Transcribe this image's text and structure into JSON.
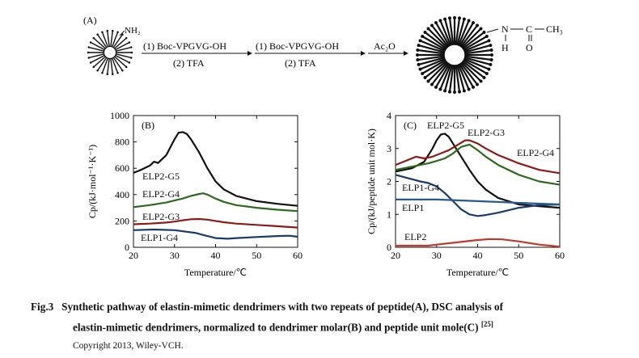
{
  "scheme": {
    "label": "(A)",
    "nh2": "NH₂",
    "step1_line1": "(1) Boc-VPGVG-OH",
    "step1_line2": "(2) TFA",
    "step2_line1": "(1) Boc-VPGVG-OH",
    "step2_line2": "(2) TFA",
    "step3": "Ac₂O",
    "product_n": "N",
    "product_c": "C",
    "product_ch3": "CH₃",
    "product_h": "H",
    "product_o": "O"
  },
  "chart_data": [
    {
      "type": "line",
      "panel_label": "(B)",
      "xlabel": "Temperature/℃",
      "ylabel": "Cp/(kJ·mol⁻¹·K⁻¹)",
      "xlim": [
        20,
        60
      ],
      "ylim": [
        0,
        1000
      ],
      "xticks": [
        "20",
        "30",
        "40",
        "50",
        "60"
      ],
      "yticks": [
        "0",
        "200",
        "400",
        "600",
        "800",
        "1000"
      ],
      "series": [
        {
          "name": "ELP2-G5",
          "color": "#111111",
          "x": [
            20,
            22,
            24,
            25,
            26,
            28,
            30,
            31,
            32,
            33,
            34,
            36,
            38,
            40,
            42,
            45,
            50,
            55,
            60
          ],
          "y": [
            565,
            590,
            620,
            650,
            640,
            700,
            820,
            870,
            875,
            860,
            820,
            720,
            600,
            500,
            440,
            390,
            350,
            330,
            315
          ]
        },
        {
          "name": "ELP2-G4",
          "color": "#2d6a1e",
          "x": [
            20,
            24,
            28,
            30,
            32,
            34,
            36,
            37,
            38,
            40,
            42,
            45,
            50,
            55,
            60
          ],
          "y": [
            305,
            320,
            340,
            355,
            370,
            390,
            405,
            410,
            400,
            370,
            345,
            320,
            300,
            285,
            275
          ]
        },
        {
          "name": "ELP2-G3",
          "color": "#8b1a1a",
          "x": [
            20,
            24,
            28,
            30,
            32,
            34,
            36,
            38,
            40,
            42,
            45,
            50,
            55,
            60
          ],
          "y": [
            175,
            180,
            188,
            195,
            205,
            213,
            215,
            210,
            200,
            190,
            180,
            170,
            160,
            150
          ]
        },
        {
          "name": "ELP1-G4",
          "color": "#1a3a6b",
          "x": [
            20,
            25,
            30,
            35,
            38,
            40,
            43,
            45,
            50,
            55,
            58,
            60
          ],
          "y": [
            130,
            135,
            130,
            110,
            85,
            70,
            65,
            70,
            78,
            85,
            88,
            80
          ]
        }
      ]
    },
    {
      "type": "line",
      "panel_label": "(C)",
      "xlabel": "Temperature/℃",
      "ylabel": "Cp/(kJ/peptide unit mol·K)",
      "xlim": [
        20,
        60
      ],
      "ylim": [
        0,
        4
      ],
      "xticks": [
        "20",
        "30",
        "40",
        "50",
        "60"
      ],
      "yticks": [
        "0",
        "1",
        "2",
        "3",
        "4"
      ],
      "series": [
        {
          "name": "ELP2-G5",
          "color": "#111111",
          "x": [
            20,
            24,
            27,
            29,
            30,
            31,
            32,
            33,
            34,
            36,
            38,
            40,
            42,
            45,
            50,
            55,
            60
          ],
          "y": [
            2.3,
            2.4,
            2.6,
            3.0,
            3.25,
            3.42,
            3.45,
            3.35,
            3.15,
            2.75,
            2.35,
            2.0,
            1.75,
            1.5,
            1.3,
            1.25,
            1.2
          ]
        },
        {
          "name": "ELP2-G3",
          "color": "#8b1a1a",
          "x": [
            20,
            23,
            25,
            27,
            29,
            31,
            33,
            35,
            37,
            38,
            40,
            42,
            45,
            50,
            55,
            60
          ],
          "y": [
            2.5,
            2.65,
            2.75,
            2.7,
            2.75,
            2.85,
            2.95,
            3.1,
            3.25,
            3.25,
            3.15,
            3.0,
            2.8,
            2.55,
            2.35,
            2.25
          ]
        },
        {
          "name": "ELP2-G4",
          "color": "#2d6a1e",
          "x": [
            20,
            24,
            28,
            30,
            32,
            34,
            36,
            38,
            40,
            42,
            45,
            50,
            55,
            60
          ],
          "y": [
            2.35,
            2.45,
            2.55,
            2.62,
            2.7,
            2.85,
            3.05,
            3.12,
            2.95,
            2.75,
            2.5,
            2.2,
            2.0,
            1.9
          ]
        },
        {
          "name": "ELP1-G4",
          "color": "#1a3a6b",
          "x": [
            20,
            23,
            26,
            28,
            30,
            32,
            34,
            36,
            38,
            40,
            42,
            45,
            50,
            55,
            60
          ],
          "y": [
            2.2,
            2.1,
            2.0,
            1.95,
            1.85,
            1.65,
            1.4,
            1.15,
            1.0,
            0.95,
            0.98,
            1.05,
            1.2,
            1.28,
            1.3
          ]
        },
        {
          "name": "ELP1",
          "color": "#2a5a8a",
          "x": [
            20,
            30,
            40,
            50,
            60
          ],
          "y": [
            1.45,
            1.45,
            1.4,
            1.35,
            1.3
          ]
        },
        {
          "name": "ELP2",
          "color": "#c0392b",
          "x": [
            20,
            25,
            28,
            30,
            35,
            40,
            43,
            46,
            50,
            55,
            60
          ],
          "y": [
            0.05,
            0.05,
            0.05,
            0.08,
            0.15,
            0.22,
            0.25,
            0.24,
            0.18,
            0.08,
            0.02
          ]
        }
      ]
    }
  ],
  "caption": {
    "fig_label": "Fig.3",
    "line1": "Synthetic pathway of elastin-mimetic dendrimers with two repeats of peptide(A), DSC analysis of",
    "line2": "elastin-mimetic dendrimers, normalized to dendrimer molar(B) and peptide unit mole(C)",
    "ref": "[25]",
    "copyright": "Copyright 2013, Wiley-VCH."
  }
}
